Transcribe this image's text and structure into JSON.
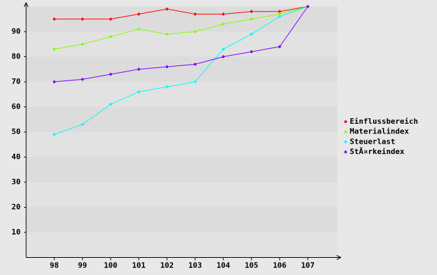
{
  "chart_data": {
    "type": "line",
    "categories": [
      "98",
      "99",
      "100",
      "101",
      "102",
      "103",
      "104",
      "105",
      "106",
      "107"
    ],
    "series": [
      {
        "name": "Einflussbereich",
        "color": "#ff0000",
        "values": [
          95,
          95,
          95,
          97,
          99,
          97,
          97,
          98,
          98,
          100
        ]
      },
      {
        "name": "Materialindex",
        "color": "#80ff00",
        "values": [
          83,
          85,
          88,
          91,
          89,
          90,
          93,
          95,
          97,
          100
        ]
      },
      {
        "name": "Steuerlast",
        "color": "#00ffff",
        "values": [
          49,
          53,
          61,
          66,
          68,
          70,
          83,
          89,
          96,
          100
        ]
      },
      {
        "name": "StÃ¤rkeindex",
        "color": "#8000ff",
        "values": [
          70,
          71,
          73,
          75,
          76,
          77,
          80,
          82,
          84,
          100
        ]
      }
    ],
    "ylim": [
      0,
      100
    ],
    "yticks": [
      10,
      20,
      30,
      40,
      50,
      60,
      70,
      80,
      90
    ],
    "grid": true,
    "legend": "right"
  }
}
